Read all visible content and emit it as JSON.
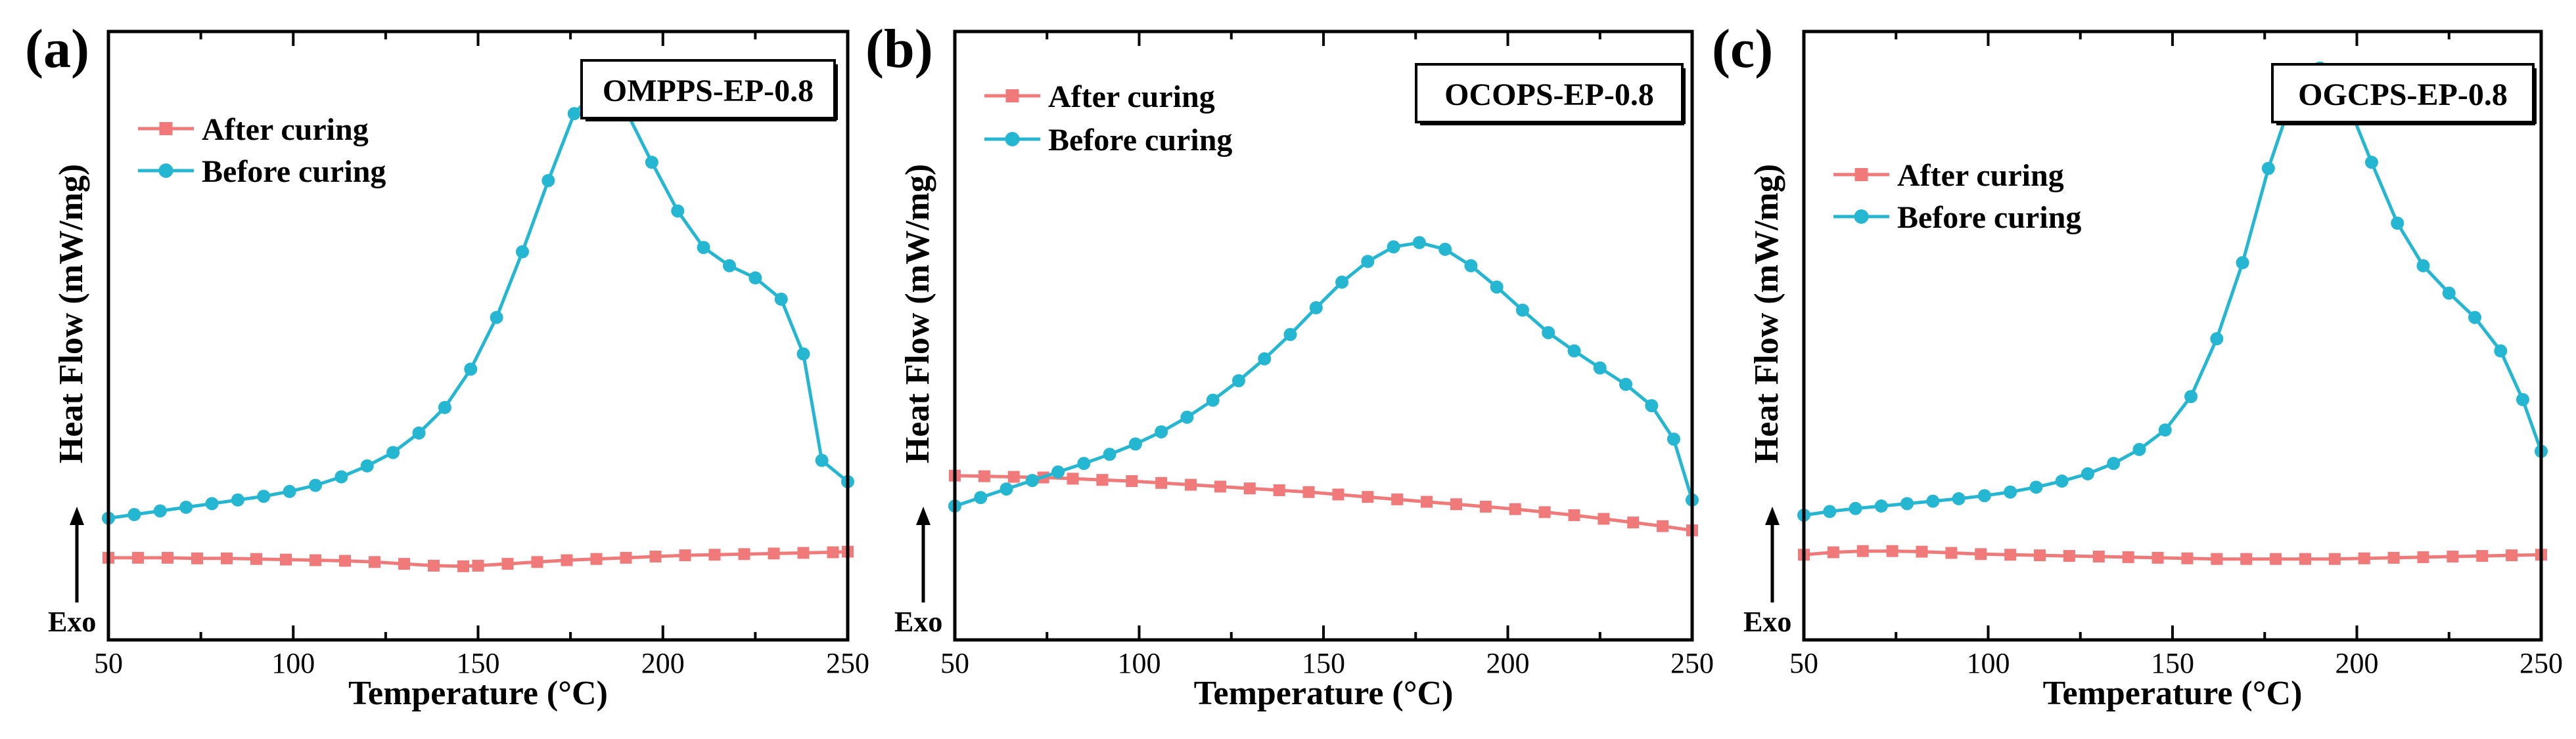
{
  "colors": {
    "after": "#f07a7a",
    "before": "#25b6d2",
    "axis": "#000000"
  },
  "chart_data": [
    {
      "type": "line",
      "panel": "(a)",
      "title": "OMPPS-EP-0.8",
      "xlabel": "Temperature (°C)",
      "ylabel": "Heat Flow (mW/mg)",
      "exo_label": "Exo",
      "xlim": [
        50,
        250
      ],
      "ylim": [
        0,
        100
      ],
      "xticks": [
        50,
        100,
        150,
        200,
        250
      ],
      "legend_position": "top-left",
      "series": [
        {
          "name": "After curing",
          "marker": "square",
          "x": [
            50,
            58,
            66,
            74,
            82,
            90,
            98,
            106,
            114,
            122,
            130,
            138,
            146,
            150,
            158,
            166,
            174,
            182,
            190,
            198,
            206,
            214,
            222,
            230,
            238,
            246,
            250
          ],
          "y": [
            13.5,
            13.5,
            13.5,
            13.4,
            13.4,
            13.3,
            13.2,
            13.1,
            13.0,
            12.8,
            12.5,
            12.2,
            12.1,
            12.2,
            12.5,
            12.8,
            13.1,
            13.3,
            13.5,
            13.7,
            13.9,
            14.0,
            14.1,
            14.2,
            14.3,
            14.4,
            14.5
          ]
        },
        {
          "name": "Before curing",
          "marker": "circle",
          "x": [
            50,
            57,
            64,
            71,
            78,
            85,
            92,
            99,
            106,
            113,
            120,
            127,
            134,
            141,
            148,
            155,
            162,
            169,
            176,
            183,
            190,
            197,
            204,
            211,
            218,
            225,
            232,
            238,
            243,
            250
          ],
          "y": [
            20,
            20.6,
            21.2,
            21.8,
            22.4,
            23,
            23.6,
            24.4,
            25.4,
            26.8,
            28.6,
            30.8,
            34,
            38.2,
            44.5,
            53,
            63.8,
            75.5,
            86.5,
            91,
            87,
            78.5,
            70.5,
            64.5,
            61.5,
            59.5,
            56,
            47,
            29.5,
            26
          ]
        }
      ]
    },
    {
      "type": "line",
      "panel": "(b)",
      "title": "OCOPS-EP-0.8",
      "xlabel": "Temperature (°C)",
      "ylabel": "Heat Flow (mW/mg)",
      "exo_label": "Exo",
      "xlim": [
        50,
        250
      ],
      "ylim": [
        0,
        100
      ],
      "xticks": [
        50,
        100,
        150,
        200,
        250
      ],
      "legend_position": "top-left",
      "series": [
        {
          "name": "After curing",
          "marker": "square",
          "x": [
            50,
            58,
            66,
            74,
            82,
            90,
            98,
            106,
            114,
            122,
            130,
            138,
            146,
            154,
            162,
            170,
            178,
            186,
            194,
            202,
            210,
            218,
            226,
            234,
            242,
            250
          ],
          "y": [
            27,
            26.9,
            26.8,
            26.7,
            26.5,
            26.3,
            26.1,
            25.8,
            25.5,
            25.2,
            24.9,
            24.6,
            24.3,
            23.9,
            23.5,
            23.1,
            22.7,
            22.3,
            21.9,
            21.5,
            21.0,
            20.5,
            19.9,
            19.3,
            18.7,
            18
          ]
        },
        {
          "name": "Before curing",
          "marker": "circle",
          "x": [
            50,
            57,
            64,
            71,
            78,
            85,
            92,
            99,
            106,
            113,
            120,
            127,
            134,
            141,
            148,
            155,
            162,
            169,
            176,
            183,
            190,
            197,
            204,
            211,
            218,
            225,
            232,
            239,
            245,
            250
          ],
          "y": [
            22,
            23.4,
            24.8,
            26.2,
            27.6,
            29,
            30.5,
            32.2,
            34.2,
            36.6,
            39.4,
            42.6,
            46.2,
            50.2,
            54.6,
            58.8,
            62.2,
            64.6,
            65.3,
            64.2,
            61.5,
            58,
            54.2,
            50.5,
            47.5,
            44.7,
            42,
            38.5,
            33,
            23
          ]
        }
      ]
    },
    {
      "type": "line",
      "panel": "(c)",
      "title": "OGCPS-EP-0.8",
      "xlabel": "Temperature (°C)",
      "ylabel": "Heat Flow (mW/mg)",
      "exo_label": "Exo",
      "xlim": [
        50,
        250
      ],
      "ylim": [
        0,
        100
      ],
      "xticks": [
        50,
        100,
        150,
        200,
        250
      ],
      "legend_position": "top-left",
      "series": [
        {
          "name": "After curing",
          "marker": "square",
          "x": [
            50,
            58,
            66,
            74,
            82,
            90,
            98,
            106,
            114,
            122,
            130,
            138,
            146,
            154,
            162,
            170,
            178,
            186,
            194,
            202,
            210,
            218,
            226,
            234,
            242,
            250
          ],
          "y": [
            14,
            14.4,
            14.6,
            14.6,
            14.5,
            14.3,
            14.1,
            14.0,
            13.9,
            13.8,
            13.7,
            13.6,
            13.5,
            13.4,
            13.3,
            13.3,
            13.3,
            13.3,
            13.3,
            13.4,
            13.5,
            13.6,
            13.7,
            13.8,
            13.9,
            14
          ]
        },
        {
          "name": "Before curing",
          "marker": "circle",
          "x": [
            50,
            57,
            64,
            71,
            78,
            85,
            92,
            99,
            106,
            113,
            120,
            127,
            134,
            141,
            148,
            155,
            162,
            169,
            176,
            183,
            190,
            197,
            204,
            211,
            218,
            225,
            232,
            239,
            245,
            250
          ],
          "y": [
            20.5,
            21.1,
            21.6,
            22,
            22.4,
            22.8,
            23.2,
            23.7,
            24.3,
            25.1,
            26.1,
            27.3,
            29,
            31.3,
            34.5,
            40,
            49.5,
            62,
            77.5,
            90,
            94,
            89,
            78.5,
            68.5,
            61.5,
            57,
            53,
            47.5,
            39.5,
            31
          ]
        }
      ]
    }
  ]
}
